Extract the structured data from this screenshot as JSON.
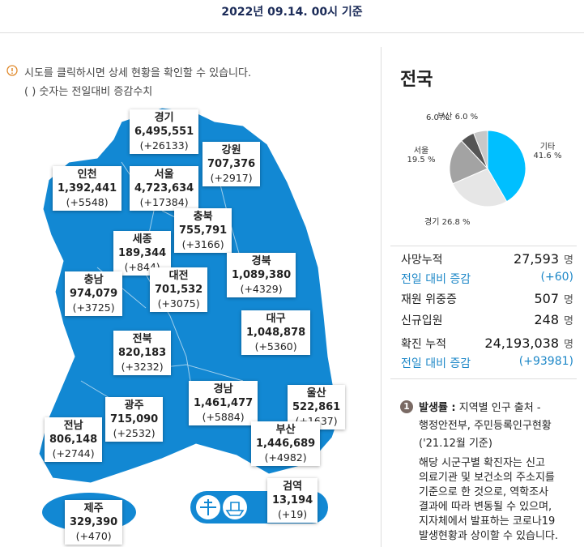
{
  "header": {
    "title": "2022년 09.14. 00시 기준"
  },
  "notice": {
    "line1": "시도를 클릭하시면 상세 현황을 확인할 수 있습니다.",
    "line2": "( ) 숫자는 전일대비 증감수치"
  },
  "regions": [
    {
      "name": "경기",
      "total": "6,495,551",
      "change": "(+26133)"
    },
    {
      "name": "강원",
      "total": "707,376",
      "change": "(+2917)"
    },
    {
      "name": "인천",
      "total": "1,392,441",
      "change": "(+5548)"
    },
    {
      "name": "서울",
      "total": "4,723,634",
      "change": "(+17384)"
    },
    {
      "name": "충북",
      "total": "755,791",
      "change": "(+3166)"
    },
    {
      "name": "세종",
      "total": "189,344",
      "change": "(+844)"
    },
    {
      "name": "경북",
      "total": "1,089,380",
      "change": "(+4329)"
    },
    {
      "name": "충남",
      "total": "974,079",
      "change": "(+3725)"
    },
    {
      "name": "대전",
      "total": "701,532",
      "change": "(+3075)"
    },
    {
      "name": "대구",
      "total": "1,048,878",
      "change": "(+5360)"
    },
    {
      "name": "전북",
      "total": "820,183",
      "change": "(+3232)"
    },
    {
      "name": "경남",
      "total": "1,461,477",
      "change": "(+5884)"
    },
    {
      "name": "울산",
      "total": "522,861",
      "change": "(+1637)"
    },
    {
      "name": "광주",
      "total": "715,090",
      "change": "(+2532)"
    },
    {
      "name": "전남",
      "total": "806,148",
      "change": "(+2744)"
    },
    {
      "name": "부산",
      "total": "1,446,689",
      "change": "(+4982)"
    },
    {
      "name": "검역",
      "total": "13,194",
      "change": "(+19)"
    },
    {
      "name": "제주",
      "total": "329,390",
      "change": "(+470)"
    }
  ],
  "panel": {
    "title": "전국",
    "stats": [
      {
        "label": "사망누적",
        "value": "27,593",
        "unit": "명"
      },
      {
        "label": "전일 대비 증감",
        "value": "(+60)"
      },
      {
        "label": "재원 위중증",
        "value": "507",
        "unit": "명"
      },
      {
        "label": "신규입원",
        "value": "248",
        "unit": "명"
      },
      {
        "label": "확진 누적",
        "value": "24,193,038",
        "unit": "명"
      },
      {
        "label": "전일 대비 증감",
        "value": "(+93981)"
      }
    ],
    "note": {
      "badge": "1",
      "term": "발생률 :",
      "lines": [
        " 지역별 인구 출처 -",
        "행정안전부, 주민등록인구현황",
        "('21.12월 기준)"
      ]
    },
    "disclaimer": [
      "해당 시군구별 확진자는 신고",
      "의료기관 및 보건소의 주소지를",
      "기준으로 한 것으로, 역학조사",
      "결과에 따라 변동될 수 있으며,",
      "지자체에서 발표하는 코로나19",
      "발생현황과 상이할 수 있습니다."
    ]
  },
  "chart_data": {
    "type": "pie",
    "categories": [
      "기타",
      "경기",
      "서울",
      null,
      "부산"
    ],
    "values": [
      41.6,
      26.8,
      19.5,
      6.0,
      6.0
    ],
    "value_labels": [
      "41.6 %",
      "26.8 %",
      "19.5 %",
      "6.0 %",
      "6.0 %"
    ],
    "colors": [
      "#00bfff",
      "#e6e6e6",
      "#a3a3a3",
      "#555555",
      "#c8c8c8"
    ]
  }
}
